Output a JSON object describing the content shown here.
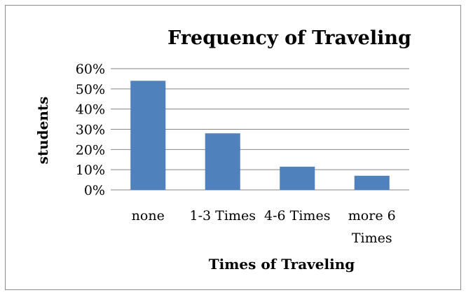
{
  "chart_data": {
    "type": "bar",
    "title": "Frequency of Traveling",
    "xlabel": "Times of Traveling",
    "ylabel": "students",
    "categories": [
      [
        "none"
      ],
      [
        "1-3 Times"
      ],
      [
        "4-6 Times"
      ],
      [
        "more 6",
        "Times"
      ]
    ],
    "values": [
      54,
      28,
      11.5,
      7
    ],
    "yticks": [
      "0%",
      "10%",
      "20%",
      "30%",
      "40%",
      "50%",
      "60%"
    ],
    "ylim": [
      0,
      60
    ],
    "grid": true,
    "legend": "none",
    "bar_color": "#4F81BD"
  }
}
